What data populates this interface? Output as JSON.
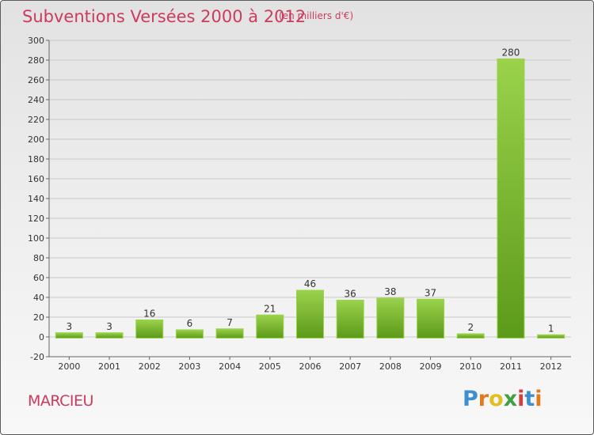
{
  "header": {
    "title": "Subventions Versées 2000 à 2012",
    "subtitle": "(en milliers d'€)"
  },
  "commune": "MARCIEU",
  "logo": {
    "text": "Proxiti",
    "letter_colors": [
      "#3f8fd0",
      "#e07a1e",
      "#e0c020",
      "#3fa040",
      "#d04040",
      "#3f8fd0",
      "#e07a1e"
    ]
  },
  "colors": {
    "bar_top": "#9ad24b",
    "bar_bottom": "#5c9a1a",
    "title": "#cc3b5e"
  },
  "chart_data": {
    "type": "bar",
    "categories": [
      "2000",
      "2001",
      "2002",
      "2003",
      "2004",
      "2005",
      "2006",
      "2007",
      "2008",
      "2009",
      "2010",
      "2011",
      "2012"
    ],
    "values": [
      3,
      3,
      16,
      6,
      7,
      21,
      46,
      36,
      38,
      37,
      2,
      280,
      1
    ],
    "value_labels": [
      "3",
      "3",
      "16",
      "6",
      "7",
      "21",
      "46",
      "36",
      "38",
      "37",
      "2",
      "280",
      "1"
    ],
    "yticks": [
      "-20",
      "0",
      "20",
      "40",
      "60",
      "80",
      "100",
      "120",
      "140",
      "160",
      "180",
      "200",
      "220",
      "240",
      "260",
      "280",
      "300"
    ],
    "ylim": [
      -20,
      300
    ],
    "grid": true,
    "legend": "none"
  }
}
